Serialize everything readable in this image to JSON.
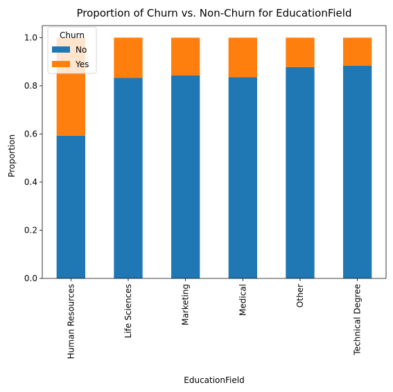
{
  "chart_data": {
    "type": "bar",
    "stacked": true,
    "title": "Proportion of Churn vs. Non-Churn for EducationField",
    "xlabel": "EducationField",
    "ylabel": "Proportion",
    "ylim": [
      0,
      1.05
    ],
    "yticks": [
      0.0,
      0.2,
      0.4,
      0.6,
      0.8,
      1.0
    ],
    "ytick_labels": [
      "0.0",
      "0.2",
      "0.4",
      "0.6",
      "0.8",
      "1.0"
    ],
    "categories": [
      "Human Resources",
      "Life Sciences",
      "Marketing",
      "Medical",
      "Other",
      "Technical Degree"
    ],
    "series": [
      {
        "name": "No",
        "color": "#1f77b4",
        "values": [
          0.593,
          0.833,
          0.843,
          0.836,
          0.878,
          0.884
        ]
      },
      {
        "name": "Yes",
        "color": "#ff7f0e",
        "values": [
          0.407,
          0.167,
          0.157,
          0.164,
          0.122,
          0.116
        ]
      }
    ],
    "legend": {
      "title": "Churn",
      "position": "top-left"
    },
    "grid": false
  }
}
